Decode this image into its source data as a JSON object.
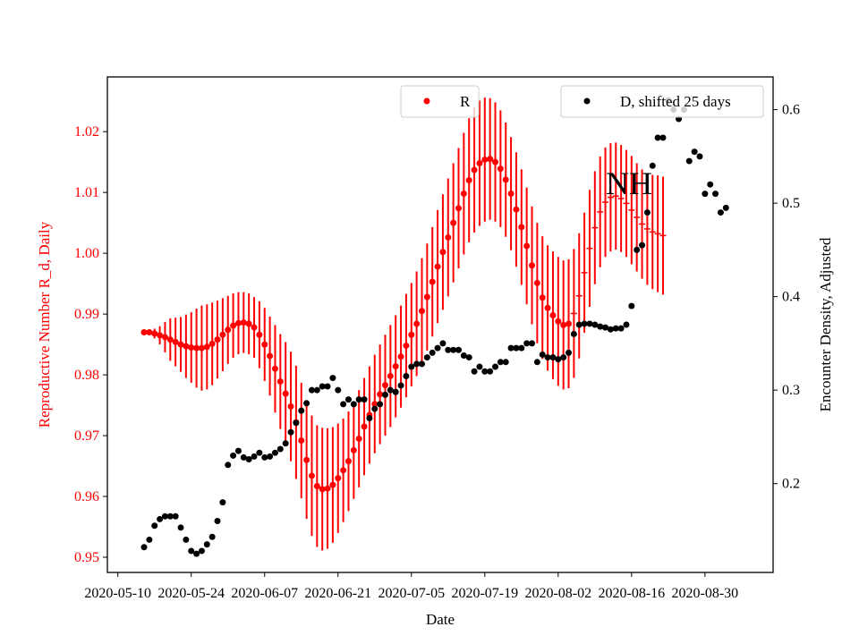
{
  "chart_data": {
    "type": "scatter",
    "annotation": "NH",
    "xlabel": "Date",
    "ylabel_left": "Reproductive Number R_d, Daily",
    "ylabel_right": "Encounter Density, Adjusted",
    "x_ticks": [
      "2020-05-10",
      "2020-05-24",
      "2020-06-07",
      "2020-06-21",
      "2020-07-05",
      "2020-07-19",
      "2020-08-02",
      "2020-08-16",
      "2020-08-30"
    ],
    "y_left_ticks": [
      0.95,
      0.96,
      0.97,
      0.98,
      0.99,
      1.0,
      1.01,
      1.02
    ],
    "y_right_ticks": [
      0.2,
      0.3,
      0.4,
      0.5,
      0.6
    ],
    "x_range": [
      "2020-05-08",
      "2020-09-12"
    ],
    "y_left_range": [
      0.9475,
      1.029
    ],
    "y_right_range": [
      0.105,
      0.635
    ],
    "colors": {
      "R": "#ff0000",
      "D": "#000000"
    },
    "legend_R": "R",
    "legend_D": "D, shifted 25 days",
    "series_R": {
      "start_date": "2020-05-15",
      "values": [
        0.987,
        0.987,
        0.9868,
        0.9865,
        0.9862,
        0.9858,
        0.9854,
        0.985,
        0.9847,
        0.9845,
        0.9844,
        0.9844,
        0.9846,
        0.9851,
        0.9858,
        0.9866,
        0.9874,
        0.9881,
        0.9885,
        0.9886,
        0.9884,
        0.9878,
        0.9866,
        0.985,
        0.9831,
        0.981,
        0.9789,
        0.9769,
        0.9748,
        0.9722,
        0.9692,
        0.966,
        0.9634,
        0.9617,
        0.9612,
        0.9613,
        0.9619,
        0.963,
        0.9643,
        0.9658,
        0.9676,
        0.9695,
        0.9715,
        0.9734,
        0.9752,
        0.9768,
        0.9783,
        0.9798,
        0.9814,
        0.983,
        0.9848,
        0.9866,
        0.9884,
        0.9905,
        0.9928,
        0.9953,
        0.9978,
        1.0002,
        1.0026,
        1.005,
        1.0074,
        1.0098,
        1.012,
        1.0137,
        1.0148,
        1.0154,
        1.0155,
        1.015,
        1.0139,
        1.0121,
        1.0098,
        1.0072,
        1.0043,
        1.0012,
        0.998,
        0.9951,
        0.9927,
        0.991,
        0.9898,
        0.9888,
        0.9882,
        0.9884,
        0.9901,
        0.993,
        0.9968,
        1.0008,
        1.0042,
        1.0068,
        1.0084,
        1.0092,
        1.0094,
        1.009,
        1.0082,
        1.0071,
        1.0059,
        1.0048,
        1.004,
        1.0035,
        1.0032,
        1.0029
      ],
      "errors": [
        0,
        0.0004,
        0.0008,
        0.0015,
        0.0025,
        0.0035,
        0.004,
        0.0045,
        0.0052,
        0.0058,
        0.0065,
        0.007,
        0.007,
        0.0068,
        0.0064,
        0.006,
        0.0056,
        0.0053,
        0.0051,
        0.005,
        0.005,
        0.005,
        0.0055,
        0.006,
        0.0065,
        0.0072,
        0.0078,
        0.0085,
        0.009,
        0.0093,
        0.0095,
        0.0097,
        0.0099,
        0.01,
        0.0101,
        0.0099,
        0.0095,
        0.009,
        0.0085,
        0.0082,
        0.008,
        0.008,
        0.008,
        0.008,
        0.0081,
        0.0082,
        0.0083,
        0.0084,
        0.0084,
        0.0084,
        0.0085,
        0.0085,
        0.0086,
        0.0087,
        0.0088,
        0.009,
        0.0093,
        0.0095,
        0.0097,
        0.0098,
        0.0099,
        0.01,
        0.0102,
        0.0103,
        0.0103,
        0.0102,
        0.01,
        0.0098,
        0.0096,
        0.0094,
        0.0093,
        0.0094,
        0.0095,
        0.0096,
        0.0097,
        0.0099,
        0.0101,
        0.0103,
        0.0105,
        0.0106,
        0.0106,
        0.0106,
        0.0106,
        0.0103,
        0.0099,
        0.0096,
        0.0093,
        0.0091,
        0.009,
        0.0089,
        0.0088,
        0.0088,
        0.0088,
        0.0089,
        0.0089,
        0.009,
        0.0092,
        0.0094,
        0.0096,
        0.0097
      ],
      "hollow_from_index": 82
    },
    "series_D": {
      "start_date": "2020-05-15",
      "values": [
        0.132,
        0.14,
        0.155,
        0.162,
        0.165,
        0.165,
        0.165,
        0.153,
        0.14,
        0.128,
        0.125,
        0.128,
        0.135,
        0.143,
        0.16,
        0.18,
        0.22,
        0.23,
        0.235,
        0.228,
        0.226,
        0.229,
        0.233,
        0.228,
        0.229,
        0.233,
        0.237,
        0.243,
        0.255,
        0.265,
        0.278,
        0.286,
        0.3,
        0.3,
        0.304,
        0.304,
        0.313,
        0.3,
        0.285,
        0.29,
        0.285,
        0.29,
        0.29,
        0.27,
        0.28,
        0.285,
        0.295,
        0.3,
        0.298,
        0.305,
        0.315,
        0.325,
        0.328,
        0.328,
        0.335,
        0.34,
        0.345,
        0.35,
        0.343,
        0.343,
        0.343,
        0.337,
        0.335,
        0.32,
        0.325,
        0.32,
        0.32,
        0.325,
        0.33,
        0.33,
        0.345,
        0.345,
        0.345,
        0.35,
        0.35,
        0.33,
        0.338,
        0.335,
        0.335,
        0.333,
        0.335,
        0.34,
        0.36,
        0.37,
        0.371,
        0.371,
        0.37,
        0.368,
        0.367,
        0.365,
        0.366,
        0.366,
        0.37,
        0.39,
        0.45,
        0.455,
        0.49,
        0.54,
        0.57,
        0.57,
        0.61,
        0.6,
        0.59,
        0.6,
        0.545,
        0.555,
        0.55,
        0.51,
        0.52,
        0.51,
        0.49,
        0.495
      ],
      "note_values_start": 0
    }
  }
}
